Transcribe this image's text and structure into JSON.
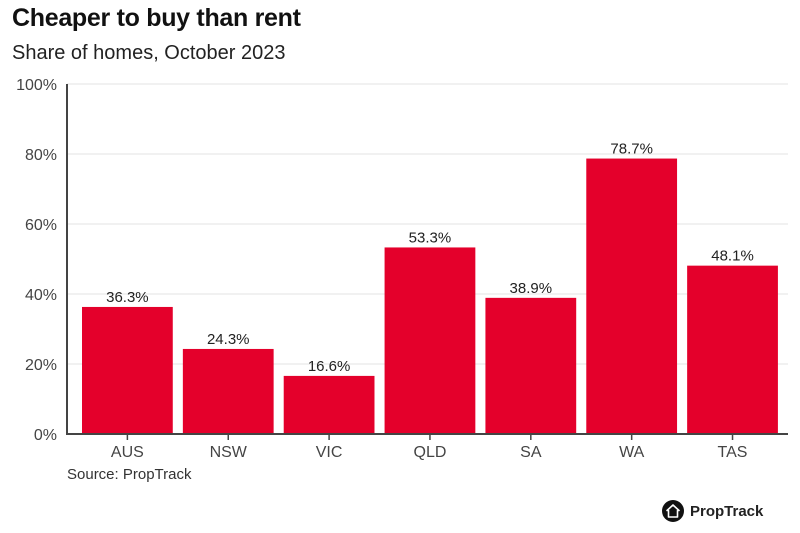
{
  "chart_data": {
    "type": "bar",
    "title": "Cheaper to buy than rent",
    "subtitle": "Share of homes, October 2023",
    "xlabel": "",
    "ylabel": "",
    "categories": [
      "AUS",
      "NSW",
      "VIC",
      "QLD",
      "SA",
      "WA",
      "TAS"
    ],
    "values": [
      36.3,
      24.3,
      16.6,
      53.3,
      38.9,
      78.7,
      48.1
    ],
    "data_labels": [
      "36.3%",
      "24.3%",
      "16.6%",
      "53.3%",
      "38.9%",
      "78.7%",
      "48.1%"
    ],
    "ylim": [
      0,
      100
    ],
    "yticks": [
      0,
      20,
      40,
      60,
      80,
      100
    ],
    "ytick_labels": [
      "0%",
      "20%",
      "40%",
      "60%",
      "80%",
      "100%"
    ],
    "grid": true,
    "bar_color": "#e4002b",
    "source": "Source: PropTrack"
  },
  "brand": {
    "name": "PropTrack",
    "icon": "house-icon"
  }
}
